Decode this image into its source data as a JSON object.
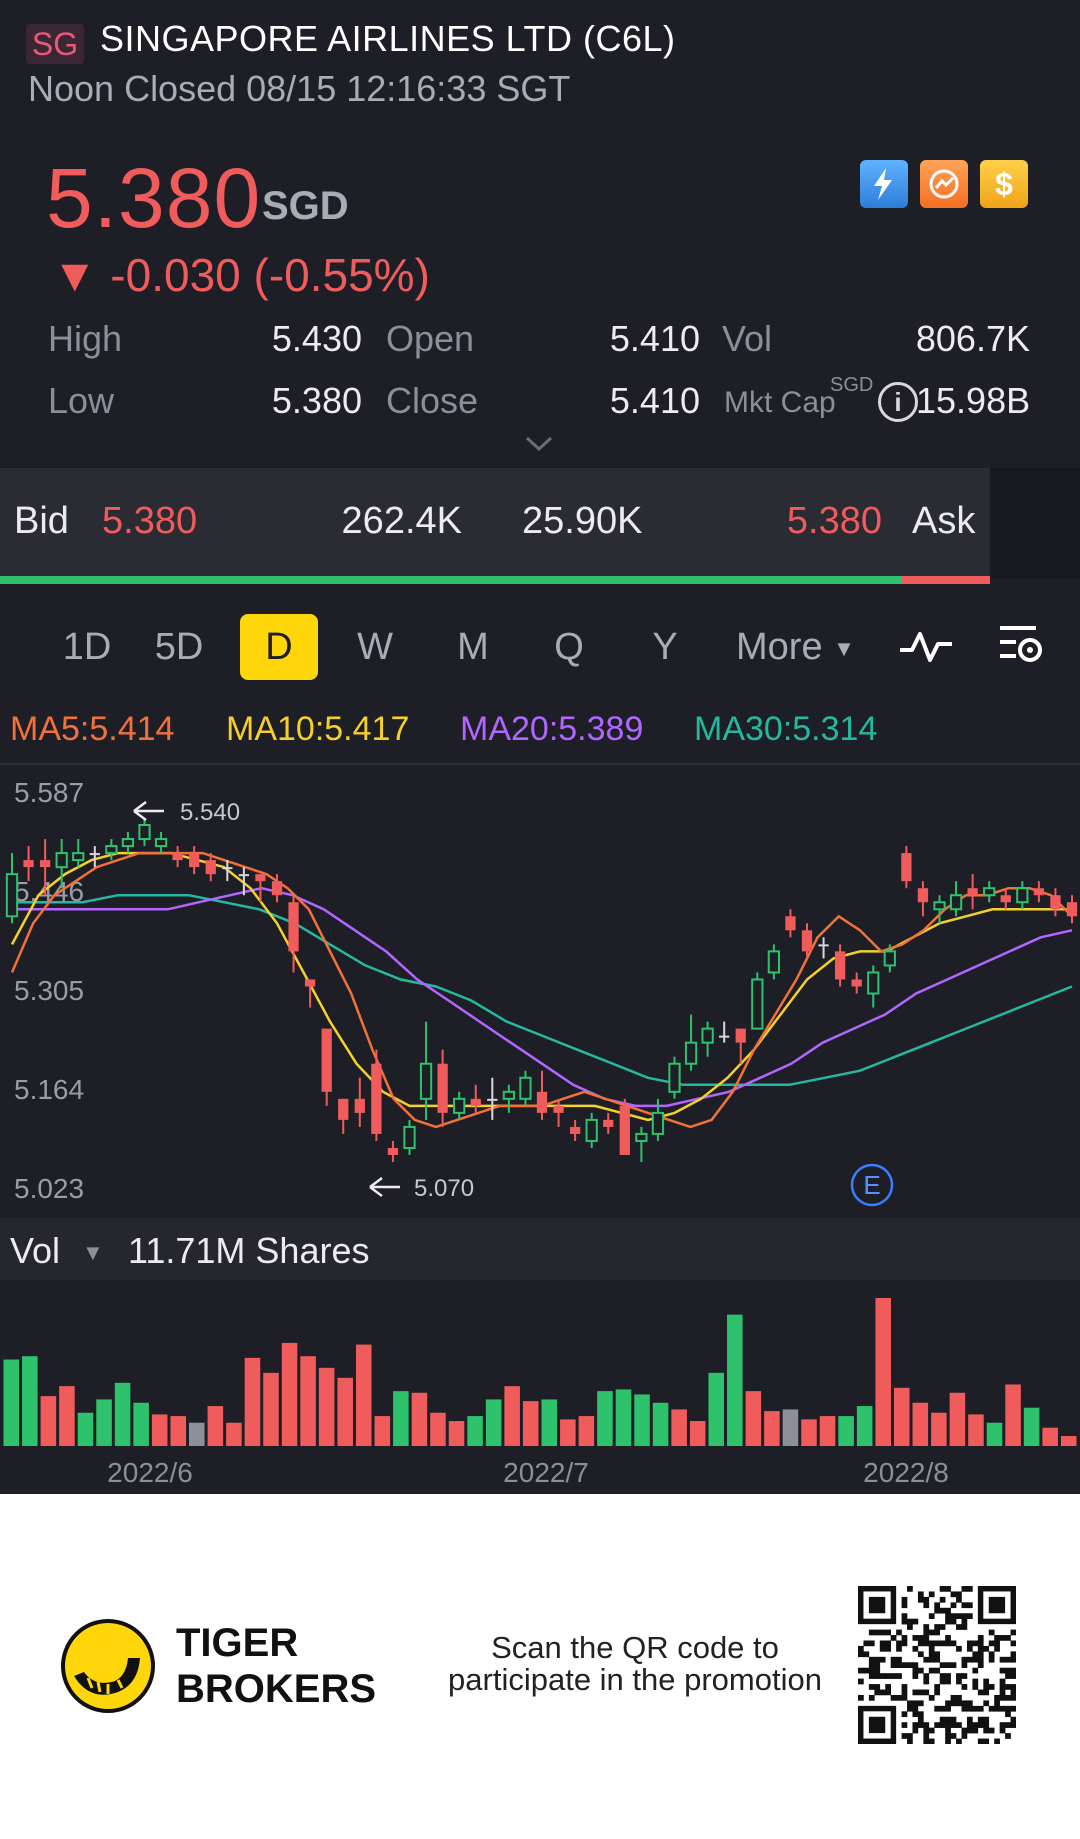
{
  "header": {
    "exchange_badge": "SG",
    "title": "SINGAPORE AIRLINES LTD (C6L)",
    "status": "Noon Closed 08/15 12:16:33 SGT",
    "price": "5.380",
    "currency": "SGD",
    "change": "▼ -0.030 (-0.55%)",
    "icons": [
      "flash-icon",
      "gauge-icon",
      "dollar-icon"
    ]
  },
  "stats": {
    "high_label": "High",
    "high": "5.430",
    "low_label": "Low",
    "low": "5.380",
    "open_label": "Open",
    "open": "5.410",
    "close_label": "Close",
    "close": "5.410",
    "vol_label": "Vol",
    "vol": "806.7K",
    "mktcap_label": "Mkt Cap",
    "mktcap_unit": "SGD",
    "mktcap": "15.98B"
  },
  "bidask": {
    "bid_label": "Bid",
    "bid_price": "5.380",
    "bid_size": "262.4K",
    "ask_size": "25.90K",
    "ask_price": "5.380",
    "ask_label": "Ask"
  },
  "tabs": [
    {
      "label": "1D",
      "active": false
    },
    {
      "label": "5D",
      "active": false
    },
    {
      "label": "D",
      "active": true
    },
    {
      "label": "W",
      "active": false
    },
    {
      "label": "M",
      "active": false
    },
    {
      "label": "Q",
      "active": false
    },
    {
      "label": "Y",
      "active": false
    }
  ],
  "more_tab": "More",
  "ma_legend": {
    "ma5": "MA5:5.414",
    "ma10": "MA10:5.417",
    "ma20": "MA20:5.389",
    "ma30": "MA30:5.314"
  },
  "colors": {
    "up": "#2dc26b",
    "down": "#f05b5b",
    "flat": "#8d8f99",
    "ma5": "#f2713b",
    "ma10": "#f5d02c",
    "ma20": "#b266ff",
    "ma30": "#25b8a0"
  },
  "chart_data": {
    "type": "candlestick",
    "y_ticks": [
      "5.587",
      "5.446",
      "5.305",
      "5.164",
      "5.023"
    ],
    "ylim": [
      5.023,
      5.587
    ],
    "high_marker": "5.540",
    "low_marker": "5.070",
    "earnings_marker": "E",
    "x_ticks": [
      "2022/6",
      "2022/7",
      "2022/8"
    ],
    "candles": [
      {
        "o": 5.41,
        "c": 5.47,
        "h": 5.5,
        "l": 5.4
      },
      {
        "o": 5.49,
        "c": 5.48,
        "h": 5.51,
        "l": 5.46
      },
      {
        "o": 5.49,
        "c": 5.48,
        "h": 5.52,
        "l": 5.44
      },
      {
        "o": 5.48,
        "c": 5.5,
        "h": 5.52,
        "l": 5.45
      },
      {
        "o": 5.49,
        "c": 5.5,
        "h": 5.52,
        "l": 5.48
      },
      {
        "o": 5.5,
        "c": 5.5,
        "h": 5.51,
        "l": 5.48
      },
      {
        "o": 5.5,
        "c": 5.51,
        "h": 5.52,
        "l": 5.49
      },
      {
        "o": 5.51,
        "c": 5.52,
        "h": 5.53,
        "l": 5.5
      },
      {
        "o": 5.52,
        "c": 5.54,
        "h": 5.55,
        "l": 5.51
      },
      {
        "o": 5.51,
        "c": 5.52,
        "h": 5.53,
        "l": 5.5
      },
      {
        "o": 5.5,
        "c": 5.49,
        "h": 5.51,
        "l": 5.48
      },
      {
        "o": 5.5,
        "c": 5.48,
        "h": 5.51,
        "l": 5.47
      },
      {
        "o": 5.49,
        "c": 5.47,
        "h": 5.5,
        "l": 5.46
      },
      {
        "o": 5.48,
        "c": 5.48,
        "h": 5.49,
        "l": 5.46
      },
      {
        "o": 5.47,
        "c": 5.47,
        "h": 5.48,
        "l": 5.44
      },
      {
        "o": 5.47,
        "c": 5.46,
        "h": 5.47,
        "l": 5.43
      },
      {
        "o": 5.46,
        "c": 5.44,
        "h": 5.47,
        "l": 5.43
      },
      {
        "o": 5.43,
        "c": 5.36,
        "h": 5.44,
        "l": 5.33
      },
      {
        "o": 5.32,
        "c": 5.31,
        "h": 5.32,
        "l": 5.28
      },
      {
        "o": 5.25,
        "c": 5.16,
        "h": 5.25,
        "l": 5.14
      },
      {
        "o": 5.15,
        "c": 5.12,
        "h": 5.15,
        "l": 5.1
      },
      {
        "o": 5.15,
        "c": 5.13,
        "h": 5.18,
        "l": 5.11
      },
      {
        "o": 5.2,
        "c": 5.1,
        "h": 5.22,
        "l": 5.09
      },
      {
        "o": 5.08,
        "c": 5.07,
        "h": 5.09,
        "l": 5.06
      },
      {
        "o": 5.08,
        "c": 5.11,
        "h": 5.12,
        "l": 5.07
      },
      {
        "o": 5.15,
        "c": 5.2,
        "h": 5.26,
        "l": 5.12
      },
      {
        "o": 5.2,
        "c": 5.13,
        "h": 5.22,
        "l": 5.11
      },
      {
        "o": 5.13,
        "c": 5.15,
        "h": 5.16,
        "l": 5.12
      },
      {
        "o": 5.15,
        "c": 5.14,
        "h": 5.17,
        "l": 5.13
      },
      {
        "o": 5.15,
        "c": 5.15,
        "h": 5.18,
        "l": 5.12
      },
      {
        "o": 5.15,
        "c": 5.16,
        "h": 5.17,
        "l": 5.13
      },
      {
        "o": 5.15,
        "c": 5.18,
        "h": 5.19,
        "l": 5.14
      },
      {
        "o": 5.16,
        "c": 5.13,
        "h": 5.19,
        "l": 5.12
      },
      {
        "o": 5.14,
        "c": 5.13,
        "h": 5.15,
        "l": 5.11
      },
      {
        "o": 5.11,
        "c": 5.1,
        "h": 5.12,
        "l": 5.09
      },
      {
        "o": 5.09,
        "c": 5.12,
        "h": 5.13,
        "l": 5.08
      },
      {
        "o": 5.12,
        "c": 5.11,
        "h": 5.13,
        "l": 5.1
      },
      {
        "o": 5.14,
        "c": 5.07,
        "h": 5.15,
        "l": 5.07
      },
      {
        "o": 5.09,
        "c": 5.1,
        "h": 5.11,
        "l": 5.06
      },
      {
        "o": 5.1,
        "c": 5.13,
        "h": 5.15,
        "l": 5.09
      },
      {
        "o": 5.16,
        "c": 5.2,
        "h": 5.21,
        "l": 5.15
      },
      {
        "o": 5.2,
        "c": 5.23,
        "h": 5.27,
        "l": 5.19
      },
      {
        "o": 5.23,
        "c": 5.25,
        "h": 5.26,
        "l": 5.21
      },
      {
        "o": 5.24,
        "c": 5.24,
        "h": 5.26,
        "l": 5.23
      },
      {
        "o": 5.25,
        "c": 5.23,
        "h": 5.25,
        "l": 5.2
      },
      {
        "o": 5.25,
        "c": 5.32,
        "h": 5.33,
        "l": 5.25
      },
      {
        "o": 5.33,
        "c": 5.36,
        "h": 5.37,
        "l": 5.32
      },
      {
        "o": 5.41,
        "c": 5.39,
        "h": 5.42,
        "l": 5.38
      },
      {
        "o": 5.39,
        "c": 5.36,
        "h": 5.4,
        "l": 5.35
      },
      {
        "o": 5.37,
        "c": 5.37,
        "h": 5.38,
        "l": 5.35
      },
      {
        "o": 5.36,
        "c": 5.32,
        "h": 5.37,
        "l": 5.31
      },
      {
        "o": 5.32,
        "c": 5.31,
        "h": 5.33,
        "l": 5.3
      },
      {
        "o": 5.3,
        "c": 5.33,
        "h": 5.34,
        "l": 5.28
      },
      {
        "o": 5.34,
        "c": 5.36,
        "h": 5.37,
        "l": 5.33
      },
      {
        "o": 5.5,
        "c": 5.46,
        "h": 5.51,
        "l": 5.45
      },
      {
        "o": 5.45,
        "c": 5.43,
        "h": 5.46,
        "l": 5.41
      },
      {
        "o": 5.42,
        "c": 5.43,
        "h": 5.44,
        "l": 5.4
      },
      {
        "o": 5.42,
        "c": 5.44,
        "h": 5.46,
        "l": 5.41
      },
      {
        "o": 5.45,
        "c": 5.44,
        "h": 5.47,
        "l": 5.42
      },
      {
        "o": 5.44,
        "c": 5.45,
        "h": 5.46,
        "l": 5.43
      },
      {
        "o": 5.44,
        "c": 5.43,
        "h": 5.45,
        "l": 5.42
      },
      {
        "o": 5.43,
        "c": 5.45,
        "h": 5.46,
        "l": 5.42
      },
      {
        "o": 5.45,
        "c": 5.44,
        "h": 5.46,
        "l": 5.43
      },
      {
        "o": 5.44,
        "c": 5.42,
        "h": 5.45,
        "l": 5.41
      },
      {
        "o": 5.43,
        "c": 5.41,
        "h": 5.44,
        "l": 5.4
      }
    ],
    "ma_series": {
      "ma5": [
        5.33,
        5.4,
        5.44,
        5.46,
        5.48,
        5.49,
        5.5,
        5.5,
        5.5,
        5.5,
        5.49,
        5.48,
        5.47,
        5.45,
        5.42,
        5.36,
        5.3,
        5.22,
        5.15,
        5.12,
        5.11,
        5.12,
        5.13,
        5.14,
        5.14,
        5.14,
        5.15,
        5.16,
        5.15,
        5.14,
        5.13,
        5.12,
        5.11,
        5.12,
        5.16,
        5.22,
        5.27,
        5.32,
        5.38,
        5.41,
        5.39,
        5.36,
        5.37,
        5.39,
        5.42,
        5.44,
        5.44,
        5.45,
        5.45,
        5.44,
        5.41
      ],
      "ma10": [
        5.37,
        5.44,
        5.47,
        5.49,
        5.5,
        5.5,
        5.5,
        5.49,
        5.48,
        5.45,
        5.4,
        5.33,
        5.26,
        5.2,
        5.16,
        5.14,
        5.14,
        5.14,
        5.14,
        5.14,
        5.14,
        5.14,
        5.14,
        5.13,
        5.12,
        5.13,
        5.15,
        5.18,
        5.22,
        5.27,
        5.32,
        5.35,
        5.36,
        5.36,
        5.38,
        5.4,
        5.41,
        5.42,
        5.42,
        5.42,
        5.42
      ],
      "ma20": [
        5.42,
        5.42,
        5.42,
        5.42,
        5.42,
        5.42,
        5.43,
        5.44,
        5.45,
        5.44,
        5.42,
        5.39,
        5.36,
        5.32,
        5.29,
        5.26,
        5.23,
        5.2,
        5.17,
        5.15,
        5.14,
        5.14,
        5.15,
        5.16,
        5.18,
        5.2,
        5.23,
        5.25,
        5.27,
        5.3,
        5.32,
        5.34,
        5.36,
        5.38,
        5.39
      ],
      "ma30": [
        5.43,
        5.43,
        5.43,
        5.44,
        5.44,
        5.44,
        5.43,
        5.42,
        5.4,
        5.37,
        5.34,
        5.32,
        5.31,
        5.29,
        5.26,
        5.24,
        5.22,
        5.2,
        5.18,
        5.17,
        5.17,
        5.17,
        5.17,
        5.18,
        5.19,
        5.21,
        5.23,
        5.25,
        5.27,
        5.29,
        5.31
      ]
    },
    "volume": [
      {
        "v": 0.52,
        "d": "up"
      },
      {
        "v": 0.54,
        "d": "up"
      },
      {
        "v": 0.3,
        "d": "down"
      },
      {
        "v": 0.36,
        "d": "down"
      },
      {
        "v": 0.2,
        "d": "up"
      },
      {
        "v": 0.28,
        "d": "up"
      },
      {
        "v": 0.38,
        "d": "up"
      },
      {
        "v": 0.26,
        "d": "up"
      },
      {
        "v": 0.19,
        "d": "down"
      },
      {
        "v": 0.18,
        "d": "down"
      },
      {
        "v": 0.14,
        "d": "flat"
      },
      {
        "v": 0.24,
        "d": "down"
      },
      {
        "v": 0.14,
        "d": "down"
      },
      {
        "v": 0.53,
        "d": "down"
      },
      {
        "v": 0.44,
        "d": "down"
      },
      {
        "v": 0.62,
        "d": "down"
      },
      {
        "v": 0.54,
        "d": "down"
      },
      {
        "v": 0.47,
        "d": "down"
      },
      {
        "v": 0.41,
        "d": "down"
      },
      {
        "v": 0.61,
        "d": "down"
      },
      {
        "v": 0.18,
        "d": "down"
      },
      {
        "v": 0.33,
        "d": "up"
      },
      {
        "v": 0.32,
        "d": "down"
      },
      {
        "v": 0.2,
        "d": "down"
      },
      {
        "v": 0.15,
        "d": "down"
      },
      {
        "v": 0.18,
        "d": "up"
      },
      {
        "v": 0.28,
        "d": "up"
      },
      {
        "v": 0.36,
        "d": "down"
      },
      {
        "v": 0.27,
        "d": "down"
      },
      {
        "v": 0.28,
        "d": "up"
      },
      {
        "v": 0.16,
        "d": "down"
      },
      {
        "v": 0.18,
        "d": "down"
      },
      {
        "v": 0.33,
        "d": "up"
      },
      {
        "v": 0.34,
        "d": "up"
      },
      {
        "v": 0.31,
        "d": "up"
      },
      {
        "v": 0.26,
        "d": "up"
      },
      {
        "v": 0.22,
        "d": "down"
      },
      {
        "v": 0.15,
        "d": "down"
      },
      {
        "v": 0.44,
        "d": "up"
      },
      {
        "v": 0.79,
        "d": "up"
      },
      {
        "v": 0.33,
        "d": "down"
      },
      {
        "v": 0.21,
        "d": "down"
      },
      {
        "v": 0.22,
        "d": "flat"
      },
      {
        "v": 0.16,
        "d": "down"
      },
      {
        "v": 0.18,
        "d": "down"
      },
      {
        "v": 0.18,
        "d": "up"
      },
      {
        "v": 0.24,
        "d": "up"
      },
      {
        "v": 0.89,
        "d": "down"
      },
      {
        "v": 0.35,
        "d": "down"
      },
      {
        "v": 0.26,
        "d": "down"
      },
      {
        "v": 0.2,
        "d": "down"
      },
      {
        "v": 0.32,
        "d": "down"
      },
      {
        "v": 0.19,
        "d": "down"
      },
      {
        "v": 0.14,
        "d": "up"
      },
      {
        "v": 0.37,
        "d": "down"
      },
      {
        "v": 0.23,
        "d": "up"
      },
      {
        "v": 0.11,
        "d": "down"
      },
      {
        "v": 0.06,
        "d": "down"
      }
    ]
  },
  "volume_header": {
    "label": "Vol",
    "value": "11.71M Shares"
  },
  "footer": {
    "brand_line1": "TIGER",
    "brand_line2": "BROKERS",
    "promo": "Scan the QR code to participate in the promotion"
  }
}
